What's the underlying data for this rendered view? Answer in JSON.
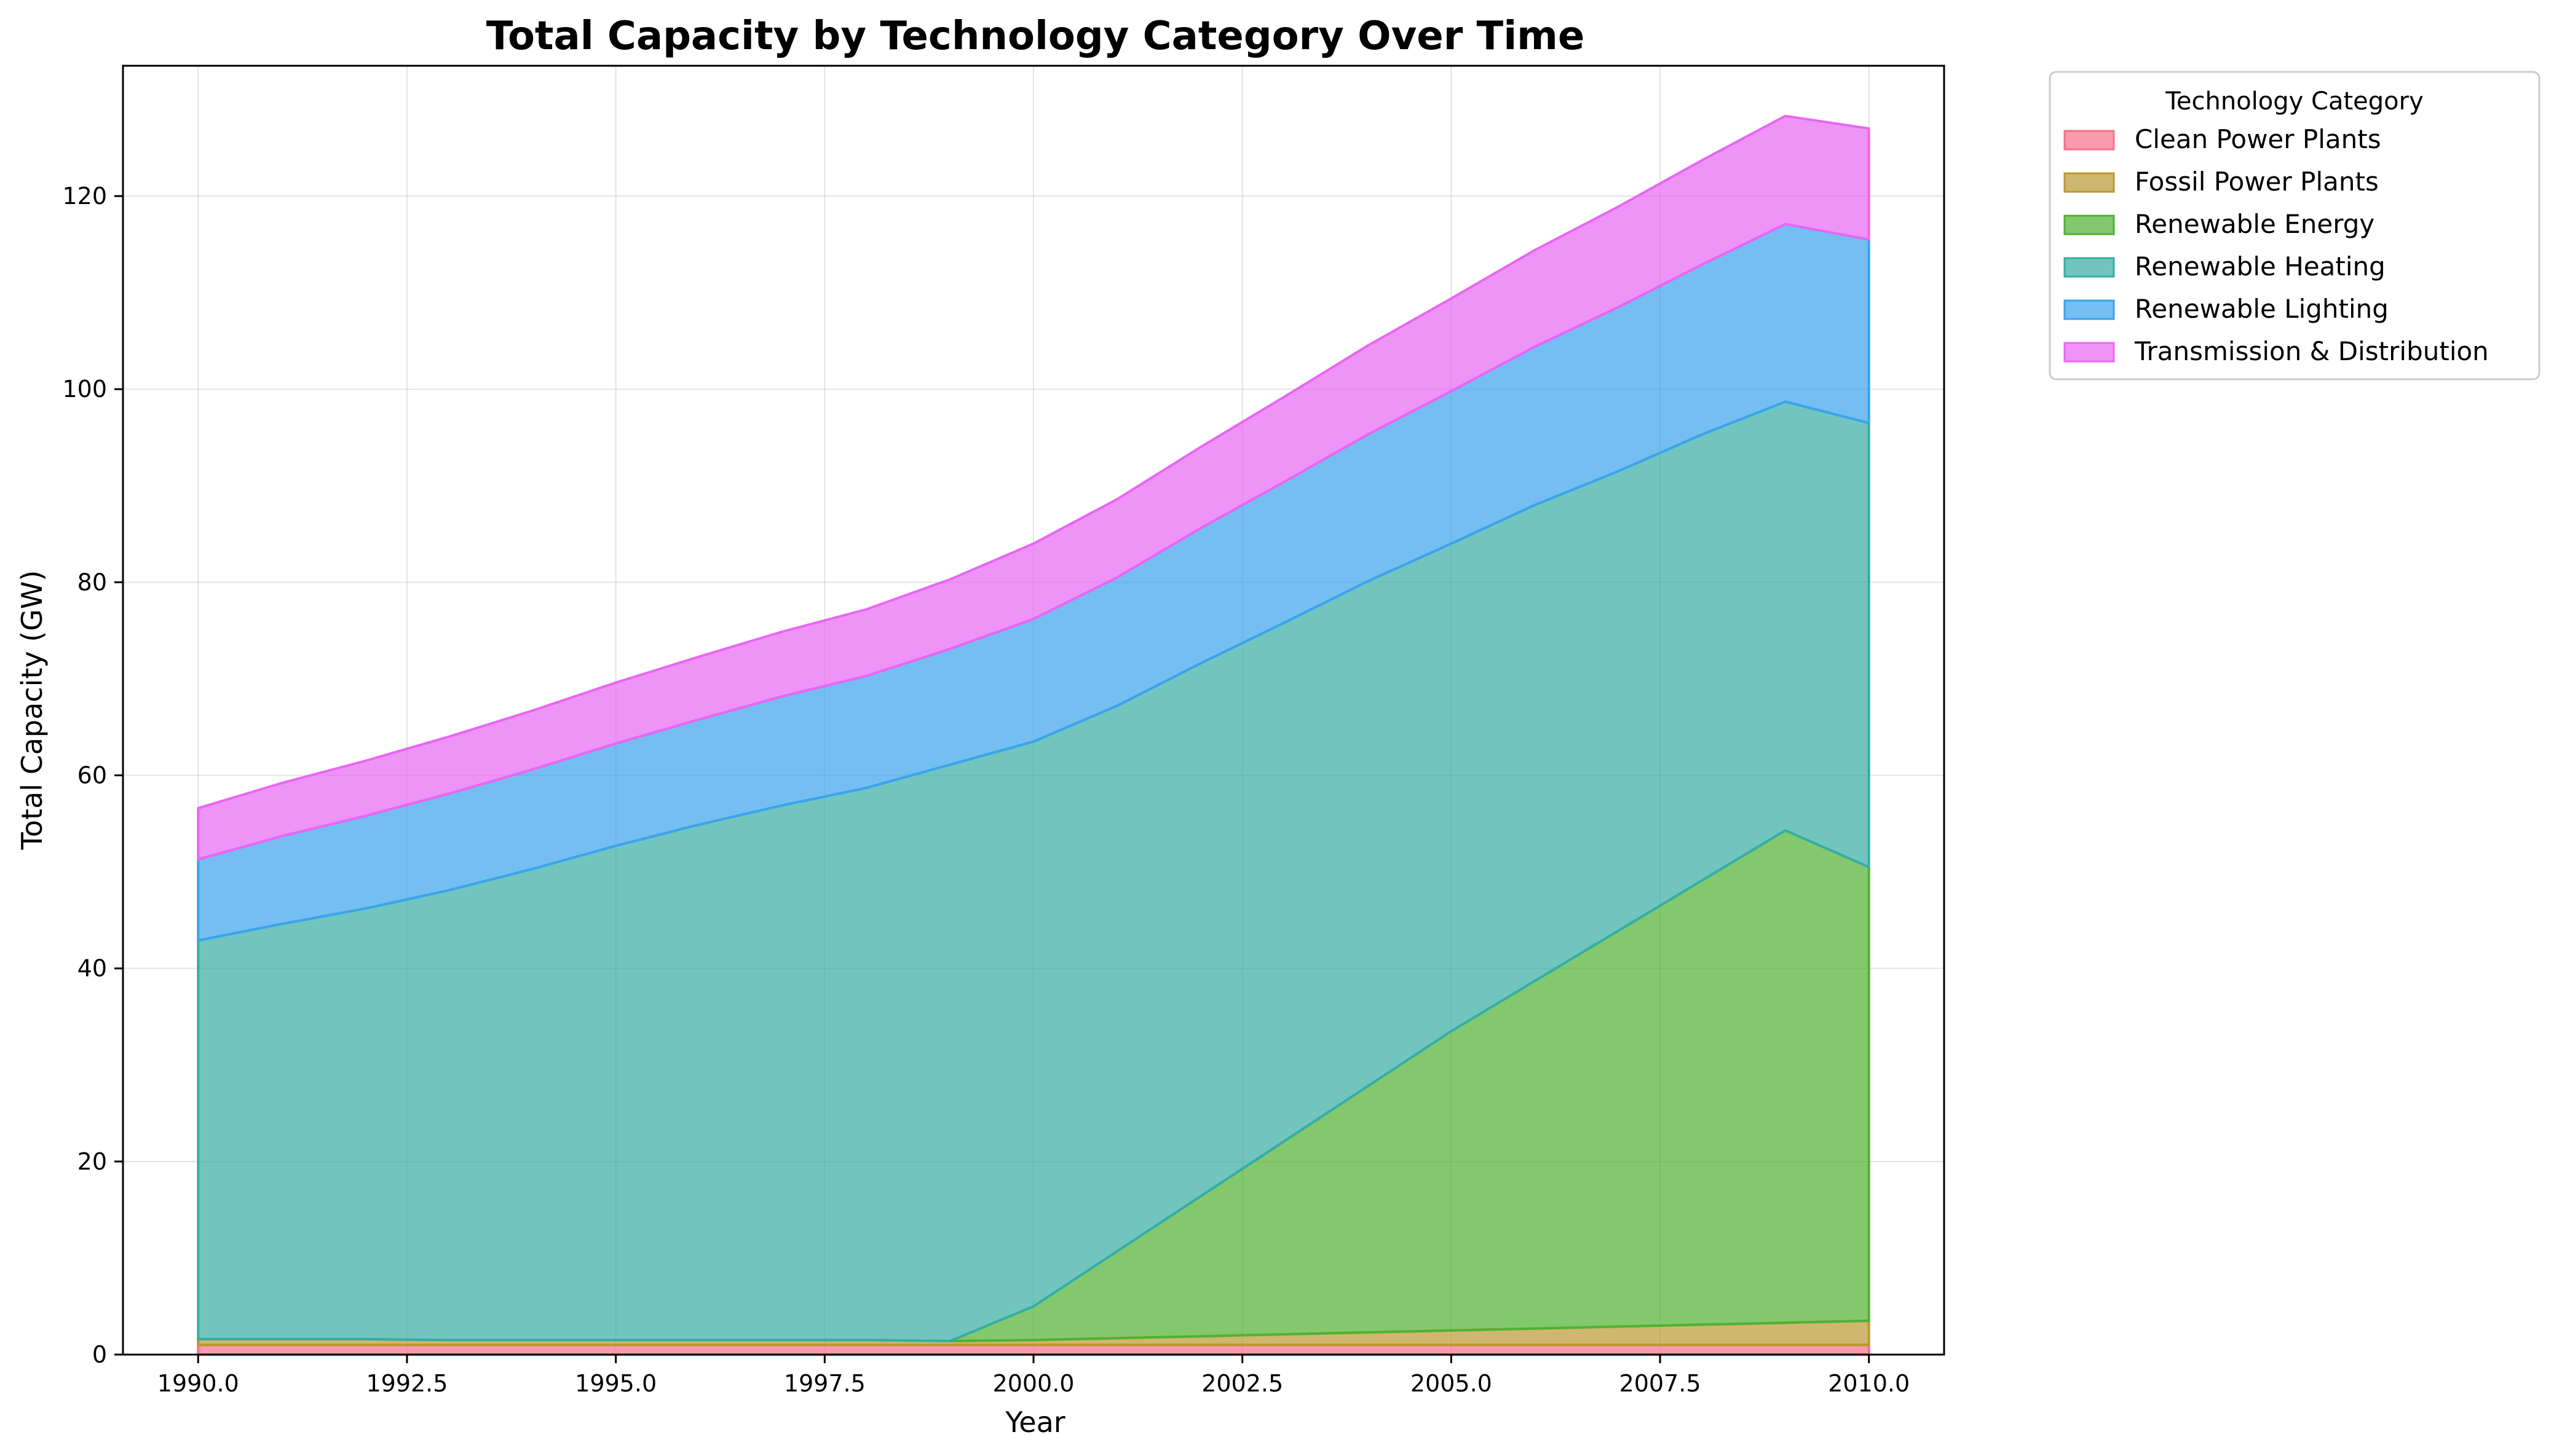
{
  "chart_data": {
    "type": "area",
    "stacked": true,
    "title": "Total Capacity by Technology Category Over Time",
    "xlabel": "Year",
    "ylabel": "Total Capacity (GW)",
    "xlim": [
      1989.1,
      2010.9
    ],
    "ylim": [
      0,
      133.5
    ],
    "xticks": [
      1990.0,
      1992.5,
      1995.0,
      1997.5,
      2000.0,
      2002.5,
      2005.0,
      2007.5,
      2010.0
    ],
    "xtick_labels": [
      "1990.0",
      "1992.5",
      "1995.0",
      "1997.5",
      "2000.0",
      "2002.5",
      "2005.0",
      "2007.5",
      "2010.0"
    ],
    "yticks": [
      0,
      20,
      40,
      60,
      80,
      100,
      120
    ],
    "ytick_labels": [
      "0",
      "20",
      "40",
      "60",
      "80",
      "100",
      "120"
    ],
    "grid": true,
    "legend": {
      "title": "Technology Category",
      "placement": "outside-right-top"
    },
    "x": [
      1990,
      1991,
      1992,
      1993,
      1994,
      1995,
      1996,
      1997,
      1998,
      1999,
      2000,
      2001,
      2002,
      2003,
      2004,
      2005,
      2006,
      2007,
      2008,
      2009,
      2010
    ],
    "series": [
      {
        "name": "Clean Power Plants",
        "color": "#f77189",
        "values": [
          1.0,
          1.0,
          1.0,
          1.0,
          1.0,
          1.0,
          1.0,
          1.0,
          1.0,
          1.0,
          1.0,
          1.0,
          1.0,
          1.0,
          1.0,
          1.0,
          1.0,
          1.0,
          1.0,
          1.0,
          1.0
        ]
      },
      {
        "name": "Fossil Power Plants",
        "color": "#bb9832",
        "values": [
          0.6,
          0.6,
          0.6,
          0.5,
          0.5,
          0.5,
          0.5,
          0.5,
          0.5,
          0.4,
          0.5,
          0.7,
          0.9,
          1.1,
          1.3,
          1.5,
          1.7,
          1.9,
          2.1,
          2.3,
          2.5
        ]
      },
      {
        "name": "Renewable Energy",
        "color": "#50b131",
        "values": [
          0,
          0,
          0,
          0,
          0,
          0,
          0,
          0,
          0,
          0,
          3.5,
          9.0,
          14.5,
          20.0,
          25.5,
          31.0,
          36.0,
          41.0,
          46.0,
          51.0,
          47.0
        ]
      },
      {
        "name": "Renewable Heating",
        "color": "#36ada4",
        "values": [
          41.3,
          43.0,
          44.6,
          46.6,
          48.8,
          51.2,
          53.4,
          55.4,
          57.2,
          59.7,
          58.5,
          56.5,
          55.2,
          53.7,
          52.3,
          50.5,
          49.3,
          47.6,
          46.2,
          44.4,
          46.0
        ]
      },
      {
        "name": "Renewable Lighting",
        "color": "#3ba3ec",
        "values": [
          8.4,
          9.1,
          9.6,
          10.0,
          10.3,
          10.6,
          10.9,
          11.3,
          11.6,
          12.0,
          12.7,
          13.3,
          14.0,
          14.6,
          15.2,
          15.8,
          16.4,
          17.0,
          17.6,
          18.4,
          19.0
        ]
      },
      {
        "name": "Transmission & Distribution",
        "color": "#e866f4",
        "values": [
          5.3,
          5.5,
          5.7,
          5.9,
          6.1,
          6.3,
          6.5,
          6.7,
          6.9,
          7.2,
          7.8,
          8.1,
          8.4,
          8.8,
          9.2,
          9.6,
          10.0,
          10.4,
          10.8,
          11.2,
          11.5
        ]
      }
    ]
  }
}
